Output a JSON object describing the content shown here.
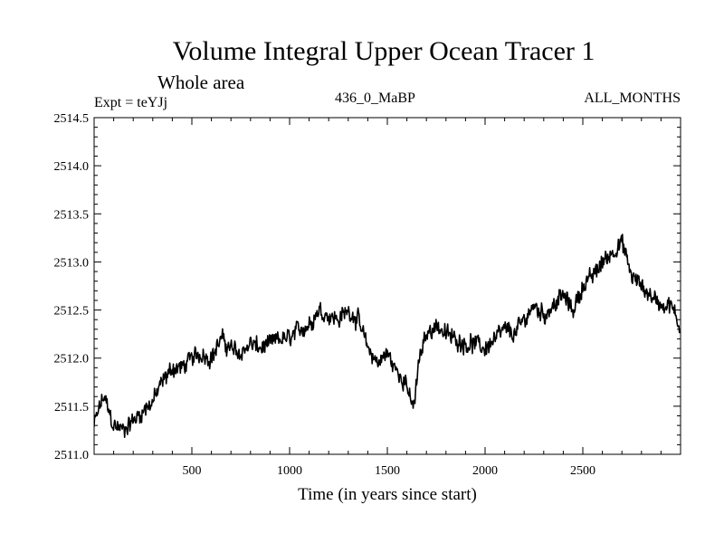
{
  "chart_data": {
    "type": "line",
    "title": "Volume Integral Upper Ocean Tracer 1",
    "subtitle": "Whole area",
    "experiment": "Expt = teYJj",
    "period": "436_0_MaBP",
    "months": "ALL_MONTHS",
    "xlabel": "Time (in years since start)",
    "ylabel": "",
    "xlim": [
      0,
      3000
    ],
    "ylim": [
      2511.0,
      2514.5
    ],
    "x_ticks": [
      500,
      1000,
      1500,
      2000,
      2500
    ],
    "x_tick_labels": [
      "500",
      "1000",
      "1500",
      "2000",
      "2500"
    ],
    "y_ticks": [
      2511.0,
      2511.5,
      2512.0,
      2512.5,
      2513.0,
      2513.5,
      2514.0,
      2514.5
    ],
    "y_tick_labels": [
      "2511.0",
      "2511.5",
      "2512.0",
      "2512.5",
      "2513.0",
      "2513.5",
      "2514.0",
      "2514.5"
    ],
    "grid": false,
    "series": [
      {
        "name": "Volume Integral Upper Ocean Tracer 1",
        "color": "#000000",
        "noise_amplitude": 0.15,
        "x": [
          0,
          30,
          50,
          100,
          150,
          200,
          250,
          300,
          350,
          400,
          450,
          500,
          550,
          600,
          650,
          700,
          750,
          800,
          850,
          900,
          950,
          1000,
          1050,
          1100,
          1150,
          1200,
          1250,
          1300,
          1350,
          1400,
          1450,
          1500,
          1550,
          1600,
          1620,
          1640,
          1660,
          1700,
          1750,
          1800,
          1850,
          1900,
          1950,
          2000,
          2050,
          2100,
          2150,
          2200,
          2250,
          2300,
          2350,
          2400,
          2450,
          2500,
          2550,
          2600,
          2650,
          2700,
          2750,
          2800,
          2850,
          2900,
          2950,
          3000
        ],
        "y": [
          2511.3,
          2511.5,
          2511.6,
          2511.3,
          2511.25,
          2511.35,
          2511.45,
          2511.55,
          2511.75,
          2511.9,
          2511.9,
          2512.0,
          2512.05,
          2512.0,
          2512.2,
          2512.1,
          2512.05,
          2512.15,
          2512.1,
          2512.15,
          2512.2,
          2512.2,
          2512.3,
          2512.35,
          2512.5,
          2512.45,
          2512.4,
          2512.5,
          2512.4,
          2512.1,
          2511.95,
          2512.05,
          2511.85,
          2511.75,
          2511.5,
          2511.55,
          2511.95,
          2512.25,
          2512.35,
          2512.25,
          2512.2,
          2512.15,
          2512.15,
          2512.1,
          2512.2,
          2512.3,
          2512.25,
          2512.4,
          2512.55,
          2512.45,
          2512.55,
          2512.65,
          2512.5,
          2512.75,
          2512.85,
          2513.0,
          2513.1,
          2513.2,
          2512.85,
          2512.75,
          2512.65,
          2512.55,
          2512.55,
          2512.3
        ]
      }
    ]
  }
}
